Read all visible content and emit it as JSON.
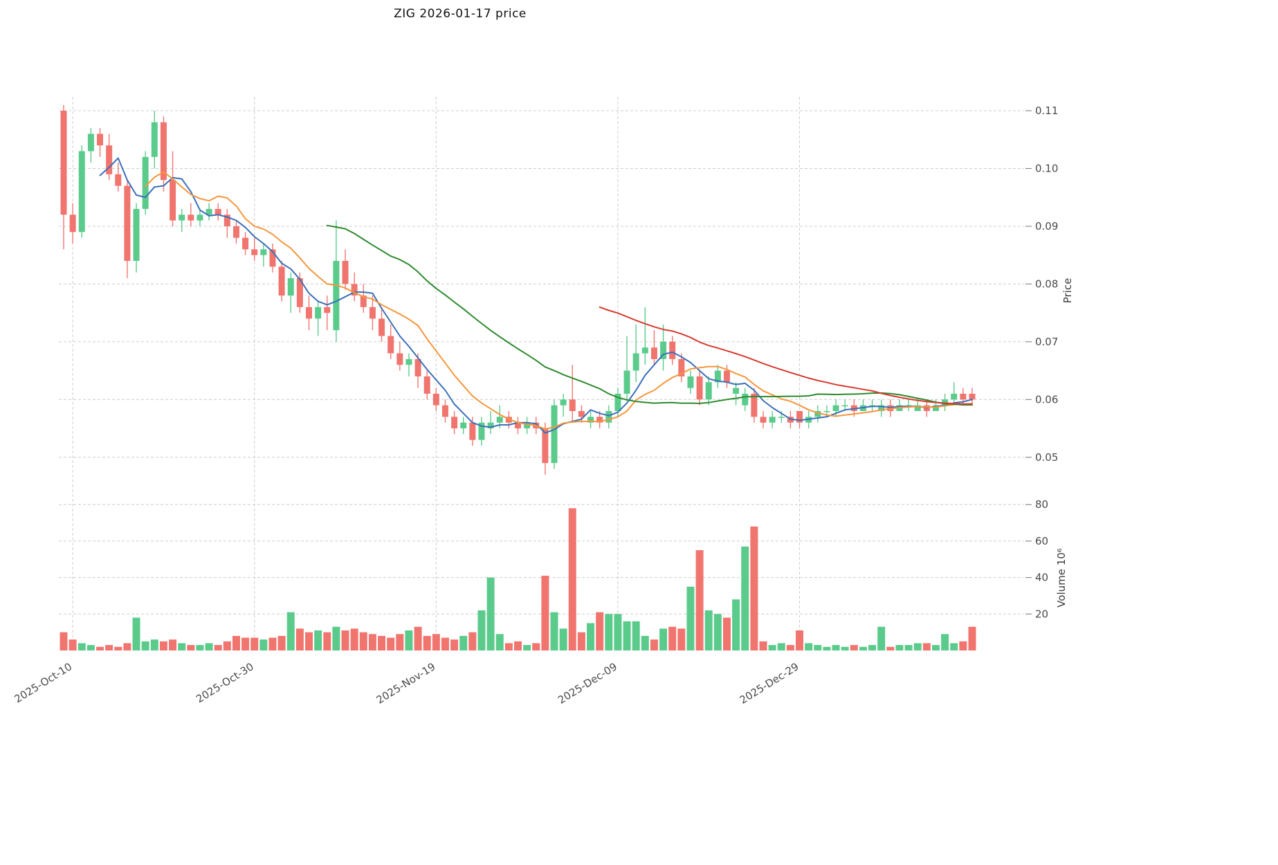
{
  "chart_data": {
    "type": "candlestick+volume",
    "title": "ZIG  2026-01-17  price",
    "symbol": "ZIG",
    "date": "2026-01-17",
    "grid": true,
    "style": {
      "up_color": "#5bcb8c",
      "down_color": "#f1756f",
      "grid_color": "#cccccc",
      "text_color": "#4a4a4a",
      "background": "#ffffff"
    },
    "price_axis": {
      "label": "Price",
      "side": "right",
      "ticks": [
        0.05,
        0.06,
        0.07,
        0.08,
        0.09,
        0.1,
        0.11
      ],
      "min": 0.0447,
      "max": 0.1124
    },
    "volume_axis": {
      "label": "Volume  10⁶",
      "side": "right",
      "ticks": [
        20,
        40,
        60,
        80
      ],
      "max": 85
    },
    "x_ticks": [
      {
        "index": 1,
        "label": "2025-Oct-10"
      },
      {
        "index": 21,
        "label": "2025-Oct-30"
      },
      {
        "index": 41,
        "label": "2025-Nov-19"
      },
      {
        "index": 61,
        "label": "2025-Dec-09"
      },
      {
        "index": 81,
        "label": "2025-Dec-29"
      }
    ],
    "ma_lines": [
      {
        "name": "ma-5",
        "period": 5,
        "color": "#3a6fb8"
      },
      {
        "name": "ma-10",
        "period": 10,
        "color": "#f5963c"
      },
      {
        "name": "ma-30",
        "period": 30,
        "color": "#2d8a2d"
      },
      {
        "name": "ma-60",
        "period": 60,
        "color": "#d63a2f"
      }
    ],
    "candles_format": [
      "date",
      "open",
      "high",
      "low",
      "close",
      "volume_millions"
    ],
    "candles": [
      [
        "2025-10-09",
        0.11,
        0.111,
        0.086,
        0.092,
        10
      ],
      [
        "2025-10-10",
        0.092,
        0.094,
        0.087,
        0.089,
        6
      ],
      [
        "2025-10-11",
        0.089,
        0.104,
        0.088,
        0.103,
        4
      ],
      [
        "2025-10-12",
        0.103,
        0.107,
        0.101,
        0.106,
        3
      ],
      [
        "2025-10-13",
        0.106,
        0.107,
        0.102,
        0.104,
        2
      ],
      [
        "2025-10-14",
        0.104,
        0.106,
        0.098,
        0.099,
        3
      ],
      [
        "2025-10-15",
        0.099,
        0.101,
        0.096,
        0.097,
        2
      ],
      [
        "2025-10-16",
        0.097,
        0.098,
        0.081,
        0.084,
        4
      ],
      [
        "2025-10-17",
        0.084,
        0.094,
        0.082,
        0.093,
        18
      ],
      [
        "2025-10-18",
        0.093,
        0.103,
        0.092,
        0.102,
        5
      ],
      [
        "2025-10-19",
        0.102,
        0.11,
        0.1,
        0.108,
        6
      ],
      [
        "2025-10-20",
        0.108,
        0.109,
        0.096,
        0.098,
        5
      ],
      [
        "2025-10-21",
        0.098,
        0.103,
        0.09,
        0.091,
        6
      ],
      [
        "2025-10-22",
        0.091,
        0.093,
        0.089,
        0.092,
        4
      ],
      [
        "2025-10-23",
        0.092,
        0.094,
        0.09,
        0.091,
        3
      ],
      [
        "2025-10-24",
        0.091,
        0.093,
        0.09,
        0.092,
        3
      ],
      [
        "2025-10-25",
        0.092,
        0.094,
        0.091,
        0.093,
        4
      ],
      [
        "2025-10-26",
        0.093,
        0.094,
        0.091,
        0.092,
        3
      ],
      [
        "2025-10-27",
        0.092,
        0.093,
        0.088,
        0.09,
        5
      ],
      [
        "2025-10-28",
        0.09,
        0.091,
        0.087,
        0.088,
        8
      ],
      [
        "2025-10-29",
        0.088,
        0.089,
        0.085,
        0.086,
        7
      ],
      [
        "2025-10-30",
        0.086,
        0.088,
        0.084,
        0.085,
        7
      ],
      [
        "2025-10-31",
        0.085,
        0.087,
        0.083,
        0.086,
        6
      ],
      [
        "2025-11-01",
        0.086,
        0.087,
        0.082,
        0.083,
        7
      ],
      [
        "2025-11-02",
        0.083,
        0.084,
        0.077,
        0.078,
        8
      ],
      [
        "2025-11-03",
        0.078,
        0.082,
        0.075,
        0.081,
        21
      ],
      [
        "2025-11-04",
        0.081,
        0.082,
        0.075,
        0.076,
        12
      ],
      [
        "2025-11-05",
        0.076,
        0.078,
        0.072,
        0.074,
        10
      ],
      [
        "2025-11-06",
        0.074,
        0.077,
        0.071,
        0.076,
        11
      ],
      [
        "2025-11-07",
        0.076,
        0.078,
        0.072,
        0.075,
        10
      ],
      [
        "2025-11-08",
        0.072,
        0.091,
        0.07,
        0.084,
        13
      ],
      [
        "2025-11-09",
        0.084,
        0.086,
        0.079,
        0.08,
        11
      ],
      [
        "2025-11-10",
        0.08,
        0.082,
        0.077,
        0.078,
        12
      ],
      [
        "2025-11-11",
        0.078,
        0.08,
        0.075,
        0.076,
        10
      ],
      [
        "2025-11-12",
        0.076,
        0.078,
        0.072,
        0.074,
        9
      ],
      [
        "2025-11-13",
        0.074,
        0.076,
        0.07,
        0.071,
        8
      ],
      [
        "2025-11-14",
        0.071,
        0.073,
        0.067,
        0.068,
        7
      ],
      [
        "2025-11-15",
        0.068,
        0.07,
        0.065,
        0.066,
        9
      ],
      [
        "2025-11-16",
        0.066,
        0.068,
        0.064,
        0.067,
        11
      ],
      [
        "2025-11-17",
        0.067,
        0.068,
        0.062,
        0.064,
        13
      ],
      [
        "2025-11-18",
        0.064,
        0.065,
        0.06,
        0.061,
        8
      ],
      [
        "2025-11-19",
        0.061,
        0.062,
        0.058,
        0.059,
        9
      ],
      [
        "2025-11-20",
        0.059,
        0.06,
        0.056,
        0.057,
        7
      ],
      [
        "2025-11-21",
        0.057,
        0.058,
        0.054,
        0.055,
        6
      ],
      [
        "2025-11-22",
        0.055,
        0.057,
        0.054,
        0.056,
        8
      ],
      [
        "2025-11-23",
        0.056,
        0.057,
        0.052,
        0.053,
        10
      ],
      [
        "2025-11-24",
        0.053,
        0.057,
        0.052,
        0.056,
        22
      ],
      [
        "2025-11-25",
        0.055,
        0.058,
        0.054,
        0.056,
        40
      ],
      [
        "2025-11-26",
        0.056,
        0.059,
        0.055,
        0.057,
        9
      ],
      [
        "2025-11-27",
        0.057,
        0.058,
        0.055,
        0.056,
        4
      ],
      [
        "2025-11-28",
        0.056,
        0.057,
        0.054,
        0.055,
        5
      ],
      [
        "2025-11-29",
        0.055,
        0.057,
        0.054,
        0.056,
        3
      ],
      [
        "2025-11-30",
        0.056,
        0.057,
        0.054,
        0.055,
        4
      ],
      [
        "2025-12-01",
        0.055,
        0.056,
        0.047,
        0.049,
        41
      ],
      [
        "2025-12-02",
        0.049,
        0.06,
        0.048,
        0.059,
        21
      ],
      [
        "2025-12-03",
        0.059,
        0.061,
        0.057,
        0.06,
        12
      ],
      [
        "2025-12-04",
        0.06,
        0.066,
        0.056,
        0.058,
        78
      ],
      [
        "2025-12-05",
        0.058,
        0.059,
        0.056,
        0.057,
        10
      ],
      [
        "2025-12-06",
        0.056,
        0.058,
        0.055,
        0.057,
        15
      ],
      [
        "2025-12-07",
        0.057,
        0.058,
        0.055,
        0.056,
        21
      ],
      [
        "2025-12-08",
        0.056,
        0.059,
        0.055,
        0.058,
        20
      ],
      [
        "2025-12-09",
        0.058,
        0.062,
        0.057,
        0.061,
        20
      ],
      [
        "2025-12-10",
        0.061,
        0.071,
        0.06,
        0.065,
        16
      ],
      [
        "2025-12-11",
        0.065,
        0.073,
        0.063,
        0.068,
        16
      ],
      [
        "2025-12-12",
        0.068,
        0.076,
        0.066,
        0.069,
        8
      ],
      [
        "2025-12-13",
        0.069,
        0.072,
        0.066,
        0.067,
        6
      ],
      [
        "2025-12-14",
        0.067,
        0.073,
        0.065,
        0.07,
        12
      ],
      [
        "2025-12-15",
        0.07,
        0.071,
        0.066,
        0.067,
        13
      ],
      [
        "2025-12-16",
        0.067,
        0.068,
        0.063,
        0.064,
        12
      ],
      [
        "2025-12-17",
        0.062,
        0.065,
        0.061,
        0.064,
        35
      ],
      [
        "2025-12-18",
        0.064,
        0.065,
        0.059,
        0.06,
        55
      ],
      [
        "2025-12-19",
        0.06,
        0.064,
        0.059,
        0.063,
        22
      ],
      [
        "2025-12-20",
        0.063,
        0.066,
        0.062,
        0.065,
        20
      ],
      [
        "2025-12-21",
        0.065,
        0.066,
        0.062,
        0.063,
        18
      ],
      [
        "2025-12-22",
        0.061,
        0.063,
        0.059,
        0.062,
        28
      ],
      [
        "2025-12-23",
        0.059,
        0.062,
        0.058,
        0.061,
        57
      ],
      [
        "2025-12-24",
        0.061,
        0.062,
        0.056,
        0.057,
        68
      ],
      [
        "2025-12-25",
        0.057,
        0.058,
        0.055,
        0.056,
        5
      ],
      [
        "2025-12-26",
        0.056,
        0.058,
        0.055,
        0.057,
        3
      ],
      [
        "2025-12-27",
        0.057,
        0.058,
        0.056,
        0.057,
        4
      ],
      [
        "2025-12-28",
        0.057,
        0.058,
        0.055,
        0.056,
        3
      ],
      [
        "2025-12-29",
        0.058,
        0.058,
        0.055,
        0.056,
        11
      ],
      [
        "2025-12-30",
        0.056,
        0.058,
        0.055,
        0.057,
        4
      ],
      [
        "2025-12-31",
        0.057,
        0.059,
        0.056,
        0.058,
        3
      ],
      [
        "2026-01-01",
        0.058,
        0.059,
        0.057,
        0.058,
        2
      ],
      [
        "2026-01-02",
        0.058,
        0.06,
        0.057,
        0.059,
        3
      ],
      [
        "2026-01-03",
        0.059,
        0.06,
        0.058,
        0.059,
        2
      ],
      [
        "2026-01-04",
        0.059,
        0.06,
        0.057,
        0.058,
        3
      ],
      [
        "2026-01-05",
        0.058,
        0.06,
        0.058,
        0.059,
        2
      ],
      [
        "2026-01-06",
        0.059,
        0.06,
        0.058,
        0.059,
        3
      ],
      [
        "2026-01-07",
        0.058,
        0.06,
        0.057,
        0.059,
        13
      ],
      [
        "2026-01-08",
        0.059,
        0.06,
        0.057,
        0.058,
        2
      ],
      [
        "2026-01-09",
        0.058,
        0.06,
        0.058,
        0.059,
        3
      ],
      [
        "2026-01-10",
        0.059,
        0.06,
        0.058,
        0.059,
        3
      ],
      [
        "2026-01-11",
        0.058,
        0.06,
        0.058,
        0.059,
        4
      ],
      [
        "2026-01-12",
        0.059,
        0.06,
        0.057,
        0.058,
        4
      ],
      [
        "2026-01-13",
        0.058,
        0.06,
        0.058,
        0.059,
        3
      ],
      [
        "2026-01-14",
        0.059,
        0.061,
        0.058,
        0.06,
        9
      ],
      [
        "2026-01-15",
        0.06,
        0.063,
        0.059,
        0.061,
        4
      ],
      [
        "2026-01-16",
        0.061,
        0.062,
        0.059,
        0.06,
        5
      ],
      [
        "2026-01-17",
        0.061,
        0.062,
        0.059,
        0.06,
        13
      ]
    ]
  }
}
